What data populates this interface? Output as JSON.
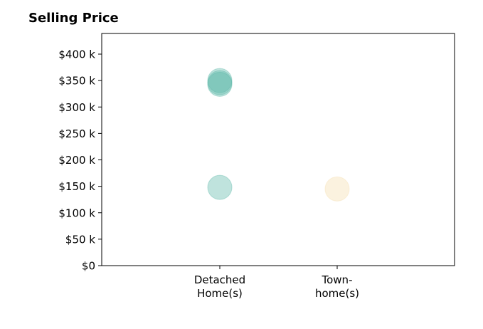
{
  "chart_data": {
    "type": "scatter",
    "title": "Selling Price",
    "xlabel": "",
    "ylabel": "",
    "categories": [
      [
        "Detached",
        "Home(s)"
      ],
      [
        "Town-",
        "home(s)"
      ]
    ],
    "yticks": [
      0,
      50,
      100,
      150,
      200,
      250,
      300,
      350,
      400
    ],
    "ytick_labels": [
      "$0",
      "$50 k",
      "$100 k",
      "$150 k",
      "$200 k",
      "$250 k",
      "$300 k",
      "$350 k",
      "$400 k"
    ],
    "ylim": [
      0,
      440
    ],
    "grid": false,
    "series": [
      {
        "category_index": 0,
        "color": "#5fb8aa",
        "points": [
          350,
          346,
          343,
          148
        ]
      },
      {
        "category_index": 1,
        "color": "#f5deb0",
        "points": [
          145
        ]
      }
    ]
  }
}
